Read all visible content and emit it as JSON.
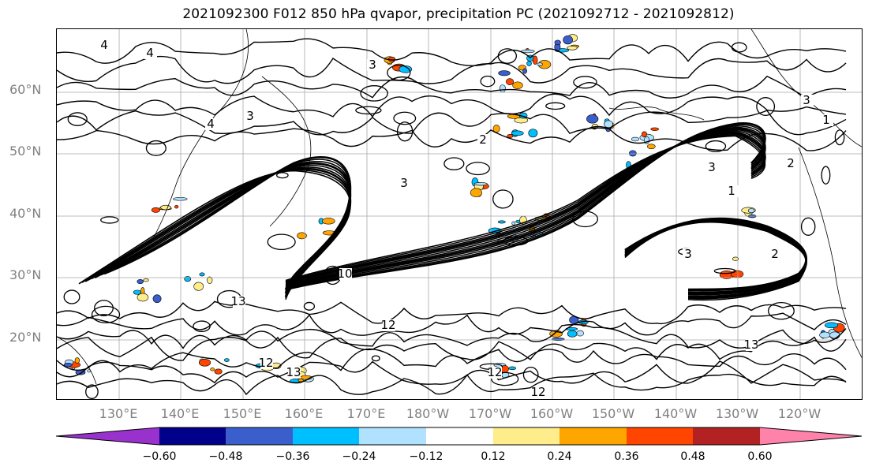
{
  "title": "2021092300 F012 850 hPa qvapor, precipitation PC (2021092712 - 2021092812)",
  "map": {
    "lat_labels": [
      "60°N",
      "50°N",
      "40°N",
      "30°N",
      "20°N"
    ],
    "lon_labels": [
      "130°E",
      "140°E",
      "150°E",
      "160°E",
      "170°E",
      "180°W",
      "170°W",
      "160°W",
      "150°W",
      "140°W",
      "130°W",
      "120°W"
    ],
    "contour_labels": [
      "4",
      "3",
      "4",
      "3",
      "2",
      "3",
      "3",
      "2",
      "13",
      "13",
      "12",
      "1",
      "12",
      "3",
      "2",
      "1",
      "4",
      "3",
      "10",
      "13",
      "12",
      "12"
    ],
    "contour_color": "#000000",
    "gridline_color": "#a0a0a0",
    "coastline_color": "#000000"
  },
  "colorbar": {
    "ticks": [
      "−0.60",
      "−0.48",
      "−0.36",
      "−0.24",
      "−0.12",
      "0.12",
      "0.24",
      "0.36",
      "0.48",
      "0.60"
    ],
    "colors": [
      "#9932cc",
      "#00008b",
      "#3a5fcd",
      "#00bfff",
      "#b0e2ff",
      "#ffffff",
      "#ffec8b",
      "#ffa500",
      "#ff4500",
      "#b22222",
      "#ff82ab"
    ]
  }
}
